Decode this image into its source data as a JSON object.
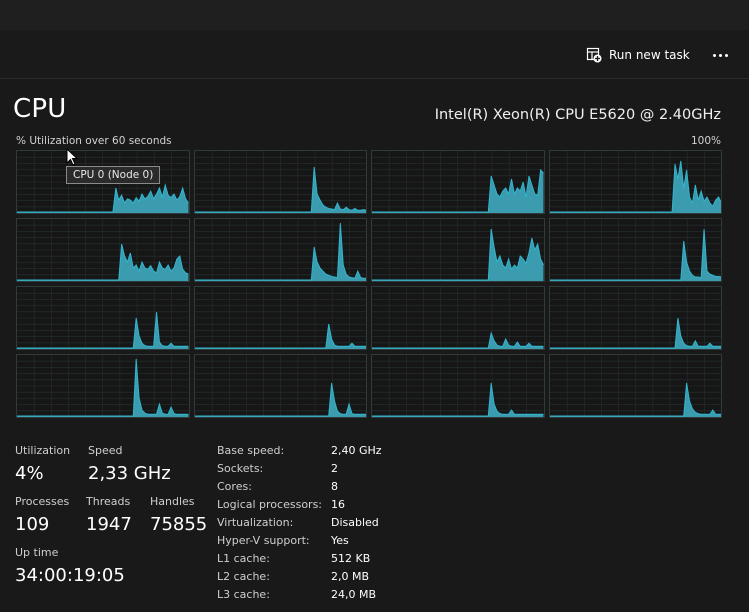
{
  "toolbar": {
    "run_new_task_label": "Run new task",
    "run_icon": "run-task-icon",
    "more_icon": "more-options-icon"
  },
  "header": {
    "title": "CPU",
    "cpu_model": "Intel(R) Xeon(R) CPU E5620 @ 2.40GHz",
    "axis_label": "% Utilization over 60 seconds",
    "axis_max": "100%"
  },
  "tooltip": {
    "text": "CPU 0 (Node 0)"
  },
  "stats": {
    "utilization_label": "Utilization",
    "utilization_value": "4%",
    "speed_label": "Speed",
    "speed_value": "2,33 GHz",
    "processes_label": "Processes",
    "processes_value": "109",
    "threads_label": "Threads",
    "threads_value": "1947",
    "handles_label": "Handles",
    "handles_value": "75855",
    "uptime_label": "Up time",
    "uptime_value": "34:00:19:05"
  },
  "specs": [
    {
      "label": "Base speed:",
      "value": "2,40 GHz"
    },
    {
      "label": "Sockets:",
      "value": "2"
    },
    {
      "label": "Cores:",
      "value": "8"
    },
    {
      "label": "Logical processors:",
      "value": "16"
    },
    {
      "label": "Virtualization:",
      "value": "Disabled"
    },
    {
      "label": "Hyper-V support:",
      "value": "Yes"
    },
    {
      "label": "L1 cache:",
      "value": "512 KB"
    },
    {
      "label": "L2 cache:",
      "value": "2,0 MB"
    },
    {
      "label": "L3 cache:",
      "value": "24,0 MB"
    }
  ],
  "colors": {
    "graph_line": "#31b5cf",
    "graph_fill": "#3a9cae",
    "grid_border": "#2f3a3a",
    "grid_lines": "#263030"
  },
  "chart_data": {
    "type": "area",
    "y_range": [
      0,
      100
    ],
    "x_range_seconds": 60,
    "grid": true,
    "series": [
      {
        "values": [
          0,
          0,
          0,
          0,
          0,
          0,
          0,
          0,
          0,
          0,
          0,
          0,
          0,
          0,
          0,
          0,
          0,
          0,
          0,
          0,
          0,
          0,
          0,
          0,
          0,
          0,
          0,
          0,
          0,
          0,
          0,
          0,
          0,
          0,
          40,
          20,
          28,
          15,
          22,
          20,
          15,
          24,
          18,
          30,
          22,
          26,
          35,
          22,
          30,
          40,
          25,
          45,
          28,
          24,
          30,
          20,
          26,
          40,
          22,
          15
        ]
      },
      {
        "values": [
          0,
          0,
          0,
          0,
          0,
          0,
          0,
          0,
          0,
          0,
          0,
          0,
          0,
          0,
          0,
          0,
          0,
          0,
          0,
          0,
          0,
          0,
          0,
          0,
          0,
          0,
          0,
          0,
          0,
          0,
          0,
          0,
          0,
          0,
          0,
          0,
          0,
          0,
          0,
          0,
          0,
          75,
          30,
          20,
          12,
          8,
          6,
          5,
          4,
          15,
          5,
          4,
          8,
          4,
          3,
          6,
          3,
          3,
          4,
          3
        ]
      },
      {
        "values": [
          0,
          0,
          0,
          0,
          0,
          0,
          0,
          0,
          0,
          0,
          0,
          0,
          0,
          0,
          0,
          0,
          0,
          0,
          0,
          0,
          0,
          0,
          0,
          0,
          0,
          0,
          0,
          0,
          0,
          0,
          0,
          0,
          0,
          0,
          0,
          0,
          0,
          0,
          0,
          0,
          0,
          60,
          45,
          30,
          25,
          35,
          40,
          30,
          55,
          30,
          40,
          35,
          50,
          25,
          60,
          45,
          30,
          28,
          70,
          65
        ]
      },
      {
        "values": [
          0,
          0,
          0,
          0,
          0,
          0,
          0,
          0,
          0,
          0,
          0,
          0,
          0,
          0,
          0,
          0,
          0,
          0,
          0,
          0,
          0,
          0,
          0,
          0,
          0,
          0,
          0,
          0,
          0,
          0,
          0,
          0,
          0,
          0,
          0,
          0,
          0,
          0,
          0,
          0,
          0,
          0,
          0,
          80,
          55,
          85,
          40,
          70,
          25,
          15,
          45,
          20,
          35,
          18,
          25,
          15,
          10,
          20,
          25,
          15
        ]
      },
      {
        "values": [
          0,
          0,
          0,
          0,
          0,
          0,
          0,
          0,
          0,
          0,
          0,
          0,
          0,
          0,
          0,
          0,
          0,
          0,
          0,
          0,
          0,
          0,
          0,
          0,
          0,
          0,
          0,
          0,
          0,
          0,
          0,
          0,
          0,
          0,
          0,
          0,
          60,
          40,
          30,
          45,
          20,
          25,
          15,
          30,
          20,
          18,
          24,
          15,
          12,
          30,
          20,
          18,
          25,
          15,
          20,
          35,
          40,
          18,
          12,
          10
        ]
      },
      {
        "values": [
          0,
          0,
          0,
          0,
          0,
          0,
          0,
          0,
          0,
          0,
          0,
          0,
          0,
          0,
          0,
          0,
          0,
          0,
          0,
          0,
          0,
          0,
          0,
          0,
          0,
          0,
          0,
          0,
          0,
          0,
          0,
          0,
          0,
          0,
          0,
          0,
          0,
          0,
          0,
          0,
          0,
          55,
          30,
          20,
          15,
          10,
          8,
          6,
          5,
          4,
          95,
          25,
          10,
          5,
          4,
          3,
          15,
          4,
          3,
          3
        ]
      },
      {
        "values": [
          0,
          0,
          0,
          0,
          0,
          0,
          0,
          0,
          0,
          0,
          0,
          0,
          0,
          0,
          0,
          0,
          0,
          0,
          0,
          0,
          0,
          0,
          0,
          0,
          0,
          0,
          0,
          0,
          0,
          0,
          0,
          0,
          0,
          0,
          0,
          0,
          0,
          0,
          0,
          0,
          0,
          85,
          55,
          30,
          40,
          25,
          20,
          35,
          18,
          25,
          20,
          40,
          35,
          28,
          45,
          70,
          50,
          60,
          35,
          25
        ]
      },
      {
        "values": [
          0,
          0,
          0,
          0,
          0,
          0,
          0,
          0,
          0,
          0,
          0,
          0,
          0,
          0,
          0,
          0,
          0,
          0,
          0,
          0,
          0,
          0,
          0,
          0,
          0,
          0,
          0,
          0,
          0,
          0,
          0,
          0,
          0,
          0,
          0,
          0,
          0,
          0,
          0,
          0,
          0,
          0,
          0,
          0,
          0,
          0,
          65,
          30,
          15,
          8,
          5,
          5,
          4,
          85,
          15,
          10,
          8,
          6,
          6,
          5
        ]
      },
      {
        "values": [
          0,
          0,
          0,
          0,
          0,
          0,
          0,
          0,
          0,
          0,
          0,
          0,
          0,
          0,
          0,
          0,
          0,
          0,
          0,
          0,
          0,
          0,
          0,
          0,
          0,
          0,
          0,
          0,
          0,
          0,
          0,
          0,
          0,
          0,
          0,
          0,
          0,
          0,
          0,
          0,
          0,
          50,
          20,
          8,
          4,
          3,
          3,
          3,
          60,
          10,
          4,
          3,
          3,
          8,
          3,
          3,
          3,
          3,
          3,
          3
        ]
      },
      {
        "values": [
          0,
          0,
          0,
          0,
          0,
          0,
          0,
          0,
          0,
          0,
          0,
          0,
          0,
          0,
          0,
          0,
          0,
          0,
          0,
          0,
          0,
          0,
          0,
          0,
          0,
          0,
          0,
          0,
          0,
          0,
          0,
          0,
          0,
          0,
          0,
          0,
          0,
          0,
          0,
          0,
          0,
          0,
          0,
          0,
          0,
          0,
          40,
          15,
          5,
          3,
          3,
          3,
          3,
          3,
          8,
          3,
          3,
          3,
          3,
          3
        ]
      },
      {
        "values": [
          0,
          0,
          0,
          0,
          0,
          0,
          0,
          0,
          0,
          0,
          0,
          0,
          0,
          0,
          0,
          0,
          0,
          0,
          0,
          0,
          0,
          0,
          0,
          0,
          0,
          0,
          0,
          0,
          0,
          0,
          0,
          0,
          0,
          0,
          0,
          0,
          0,
          0,
          0,
          0,
          0,
          25,
          12,
          5,
          3,
          3,
          15,
          5,
          3,
          3,
          10,
          3,
          3,
          3,
          8,
          3,
          3,
          3,
          3,
          3
        ]
      },
      {
        "values": [
          0,
          0,
          0,
          0,
          0,
          0,
          0,
          0,
          0,
          0,
          0,
          0,
          0,
          0,
          0,
          0,
          0,
          0,
          0,
          0,
          0,
          0,
          0,
          0,
          0,
          0,
          0,
          0,
          0,
          0,
          0,
          0,
          0,
          0,
          0,
          0,
          0,
          0,
          0,
          0,
          0,
          0,
          0,
          0,
          50,
          20,
          8,
          4,
          3,
          3,
          12,
          3,
          3,
          3,
          3,
          8,
          3,
          3,
          3,
          3
        ]
      },
      {
        "values": [
          0,
          0,
          0,
          0,
          0,
          0,
          0,
          0,
          0,
          0,
          0,
          0,
          0,
          0,
          0,
          0,
          0,
          0,
          0,
          0,
          0,
          0,
          0,
          0,
          0,
          0,
          0,
          0,
          0,
          0,
          0,
          0,
          0,
          0,
          0,
          0,
          0,
          0,
          0,
          0,
          0,
          95,
          30,
          10,
          5,
          3,
          3,
          3,
          3,
          20,
          5,
          3,
          3,
          15,
          4,
          3,
          3,
          3,
          3,
          3
        ]
      },
      {
        "values": [
          0,
          0,
          0,
          0,
          0,
          0,
          0,
          0,
          0,
          0,
          0,
          0,
          0,
          0,
          0,
          0,
          0,
          0,
          0,
          0,
          0,
          0,
          0,
          0,
          0,
          0,
          0,
          0,
          0,
          0,
          0,
          0,
          0,
          0,
          0,
          0,
          0,
          0,
          0,
          0,
          0,
          0,
          0,
          0,
          0,
          0,
          0,
          55,
          25,
          8,
          4,
          3,
          3,
          20,
          4,
          3,
          3,
          3,
          3,
          3
        ]
      },
      {
        "values": [
          0,
          0,
          0,
          0,
          0,
          0,
          0,
          0,
          0,
          0,
          0,
          0,
          0,
          0,
          0,
          0,
          0,
          0,
          0,
          0,
          0,
          0,
          0,
          0,
          0,
          0,
          0,
          0,
          0,
          0,
          0,
          0,
          0,
          0,
          0,
          0,
          0,
          0,
          0,
          0,
          0,
          55,
          20,
          8,
          4,
          3,
          3,
          3,
          10,
          3,
          3,
          3,
          3,
          3,
          3,
          3,
          3,
          3,
          3,
          3
        ]
      },
      {
        "values": [
          0,
          0,
          0,
          0,
          0,
          0,
          0,
          0,
          0,
          0,
          0,
          0,
          0,
          0,
          0,
          0,
          0,
          0,
          0,
          0,
          0,
          0,
          0,
          0,
          0,
          0,
          0,
          0,
          0,
          0,
          0,
          0,
          0,
          0,
          0,
          0,
          0,
          0,
          0,
          0,
          0,
          0,
          0,
          0,
          0,
          0,
          0,
          55,
          25,
          12,
          6,
          4,
          3,
          3,
          3,
          3,
          10,
          3,
          3,
          3
        ]
      }
    ]
  }
}
